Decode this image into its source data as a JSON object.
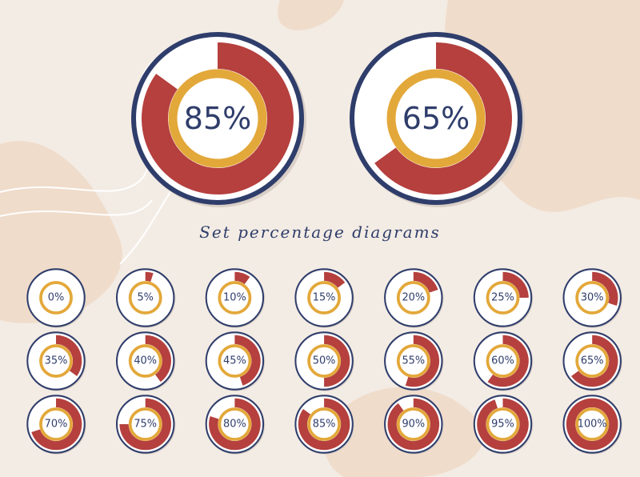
{
  "chart_data": {
    "type": "donut",
    "title": "Set percentage diagrams",
    "values": [
      85,
      65,
      0,
      5,
      10,
      15,
      20,
      25,
      30,
      35,
      40,
      45,
      50,
      55,
      60,
      65,
      70,
      75,
      80,
      85,
      90,
      95,
      100
    ],
    "value_labels": [
      "85%",
      "65%",
      "0%",
      "5%",
      "10%",
      "15%",
      "20%",
      "25%",
      "30%",
      "35%",
      "40%",
      "45%",
      "50%",
      "55%",
      "60%",
      "65%",
      "70%",
      "75%",
      "80%",
      "85%",
      "90%",
      "95%",
      "100%"
    ],
    "color": "#b5403e",
    "ring_color": "#e3a83a",
    "border_color": "#2f3d6b"
  }
}
